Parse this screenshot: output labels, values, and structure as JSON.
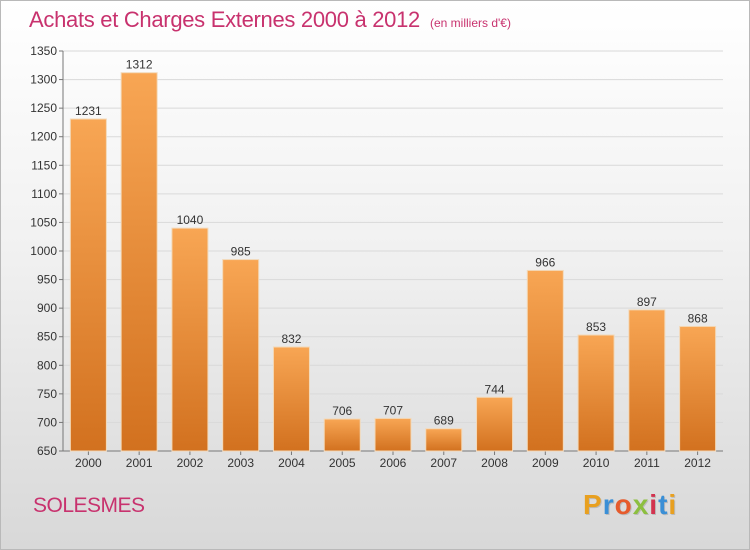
{
  "title": "Achats et Charges Externes 2000 à 2012",
  "unit_note": "(en milliers d'€)",
  "commune": "SOLESMES",
  "logo": {
    "text": "Proxiti",
    "colors": [
      "#e8a020",
      "#3a8fd6",
      "#e65b2c",
      "#8cbf3f",
      "#d2334f",
      "#3a8fd6",
      "#e8a020"
    ]
  },
  "colors": {
    "title": "#c8326e",
    "bar_top": "#f8a654",
    "bar_bottom": "#d2711f"
  },
  "chart_data": {
    "type": "bar",
    "title": "Achats et Charges Externes 2000 à 2012",
    "categories": [
      "2000",
      "2001",
      "2002",
      "2003",
      "2004",
      "2005",
      "2006",
      "2007",
      "2008",
      "2009",
      "2010",
      "2011",
      "2012"
    ],
    "values": [
      1231,
      1312,
      1040,
      985,
      832,
      706,
      707,
      689,
      744,
      966,
      853,
      897,
      868
    ],
    "ylim": [
      650,
      1350
    ],
    "yticks": [
      650,
      700,
      750,
      800,
      850,
      900,
      950,
      1000,
      1050,
      1100,
      1150,
      1200,
      1250,
      1300,
      1350
    ],
    "grid": true,
    "xlabel": "",
    "ylabel": ""
  }
}
